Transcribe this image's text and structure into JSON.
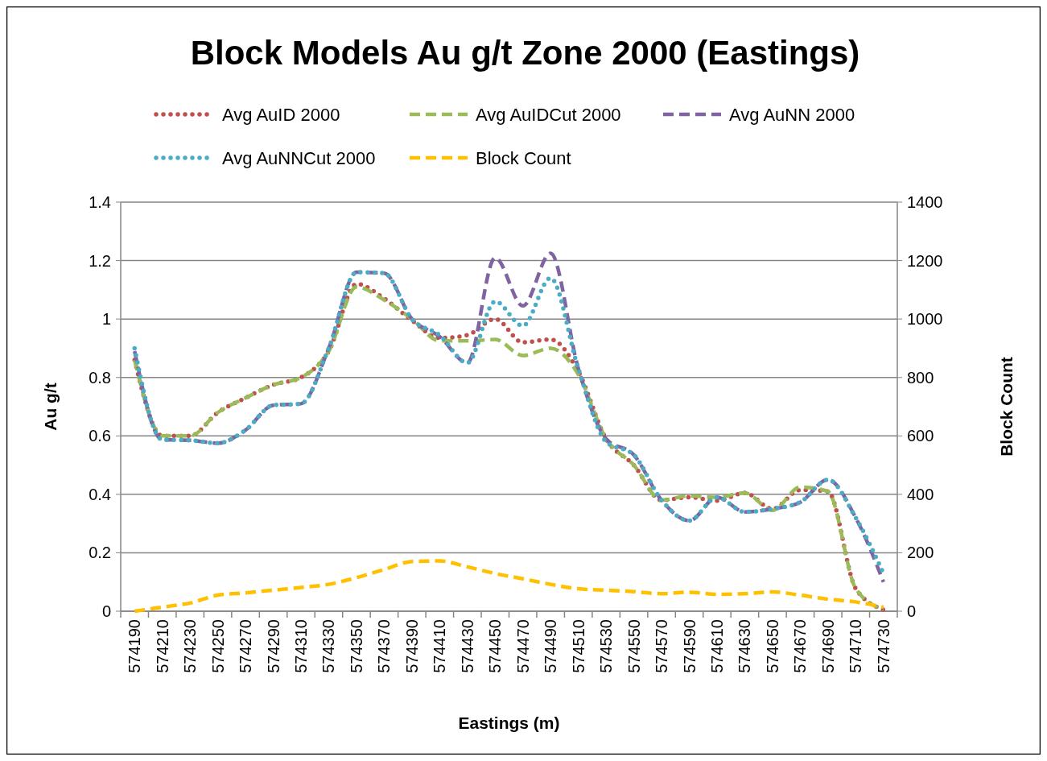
{
  "chart_data": {
    "type": "line",
    "title": "Block Models Au g/t Zone 2000 (Eastings)",
    "xlabel": "Eastings (m)",
    "ylabel": "Au g/t",
    "y2label": "Block Count",
    "categories": [
      "574190",
      "574210",
      "574230",
      "574250",
      "574270",
      "574290",
      "574310",
      "574330",
      "574350",
      "574370",
      "574390",
      "574410",
      "574430",
      "574450",
      "574470",
      "574490",
      "574510",
      "574530",
      "574550",
      "574570",
      "574590",
      "574610",
      "574630",
      "574650",
      "574670",
      "574690",
      "574710",
      "574730"
    ],
    "series": [
      {
        "name": "Avg AuID 2000",
        "color": "#c0504d",
        "line_style": "dotted",
        "values": [
          0.86,
          0.6,
          0.6,
          0.68,
          0.73,
          0.775,
          0.8,
          0.89,
          1.12,
          1.07,
          0.995,
          0.935,
          0.945,
          1.0,
          0.92,
          0.93,
          0.82,
          0.59,
          0.5,
          0.38,
          0.39,
          0.378,
          0.405,
          0.35,
          0.415,
          0.41,
          0.078,
          0.005
        ]
      },
      {
        "name": "Avg AuIDCut 2000",
        "color": "#9bbb59",
        "line_style": "dashed",
        "values": [
          0.86,
          0.6,
          0.6,
          0.68,
          0.73,
          0.775,
          0.8,
          0.89,
          1.11,
          1.065,
          1.0,
          0.925,
          0.925,
          0.93,
          0.875,
          0.9,
          0.81,
          0.59,
          0.5,
          0.38,
          0.395,
          0.39,
          0.405,
          0.345,
          0.425,
          0.41,
          0.078,
          0.005
        ]
      },
      {
        "name": "Avg AuNN 2000",
        "color": "#8064a2",
        "line_style": "dashed",
        "values": [
          0.89,
          0.587,
          0.585,
          0.575,
          0.62,
          0.705,
          0.71,
          0.9,
          1.16,
          1.157,
          1.0,
          0.94,
          0.85,
          1.21,
          1.045,
          1.225,
          0.83,
          0.59,
          0.535,
          0.38,
          0.31,
          0.39,
          0.34,
          0.35,
          0.373,
          0.45,
          0.32,
          0.1
        ]
      },
      {
        "name": "Avg AuNNCut 2000",
        "color": "#4bacc6",
        "line_style": "dotted",
        "values": [
          0.9,
          0.587,
          0.585,
          0.575,
          0.62,
          0.705,
          0.71,
          0.9,
          1.16,
          1.157,
          1.0,
          0.945,
          0.85,
          1.06,
          0.977,
          1.14,
          0.83,
          0.58,
          0.535,
          0.38,
          0.31,
          0.39,
          0.34,
          0.35,
          0.373,
          0.45,
          0.32,
          0.13
        ]
      },
      {
        "name": "Block Count",
        "color": "#ffc000",
        "line_style": "dashed",
        "axis": "y2",
        "values": [
          0,
          14,
          28,
          55,
          63,
          72,
          81,
          92,
          115,
          143,
          170,
          172,
          152,
          129,
          111,
          92,
          77,
          72,
          67,
          60,
          65,
          58,
          60,
          66,
          55,
          41,
          32,
          14
        ]
      }
    ],
    "ylim": [
      0,
      1.4
    ],
    "yticks": [
      0,
      0.2,
      0.4,
      0.6,
      0.8,
      1,
      1.2,
      1.4
    ],
    "y2lim": [
      0,
      1400
    ],
    "y2ticks": [
      0,
      200,
      400,
      600,
      800,
      1000,
      1200,
      1400
    ],
    "grid": "y",
    "legend": "top"
  }
}
